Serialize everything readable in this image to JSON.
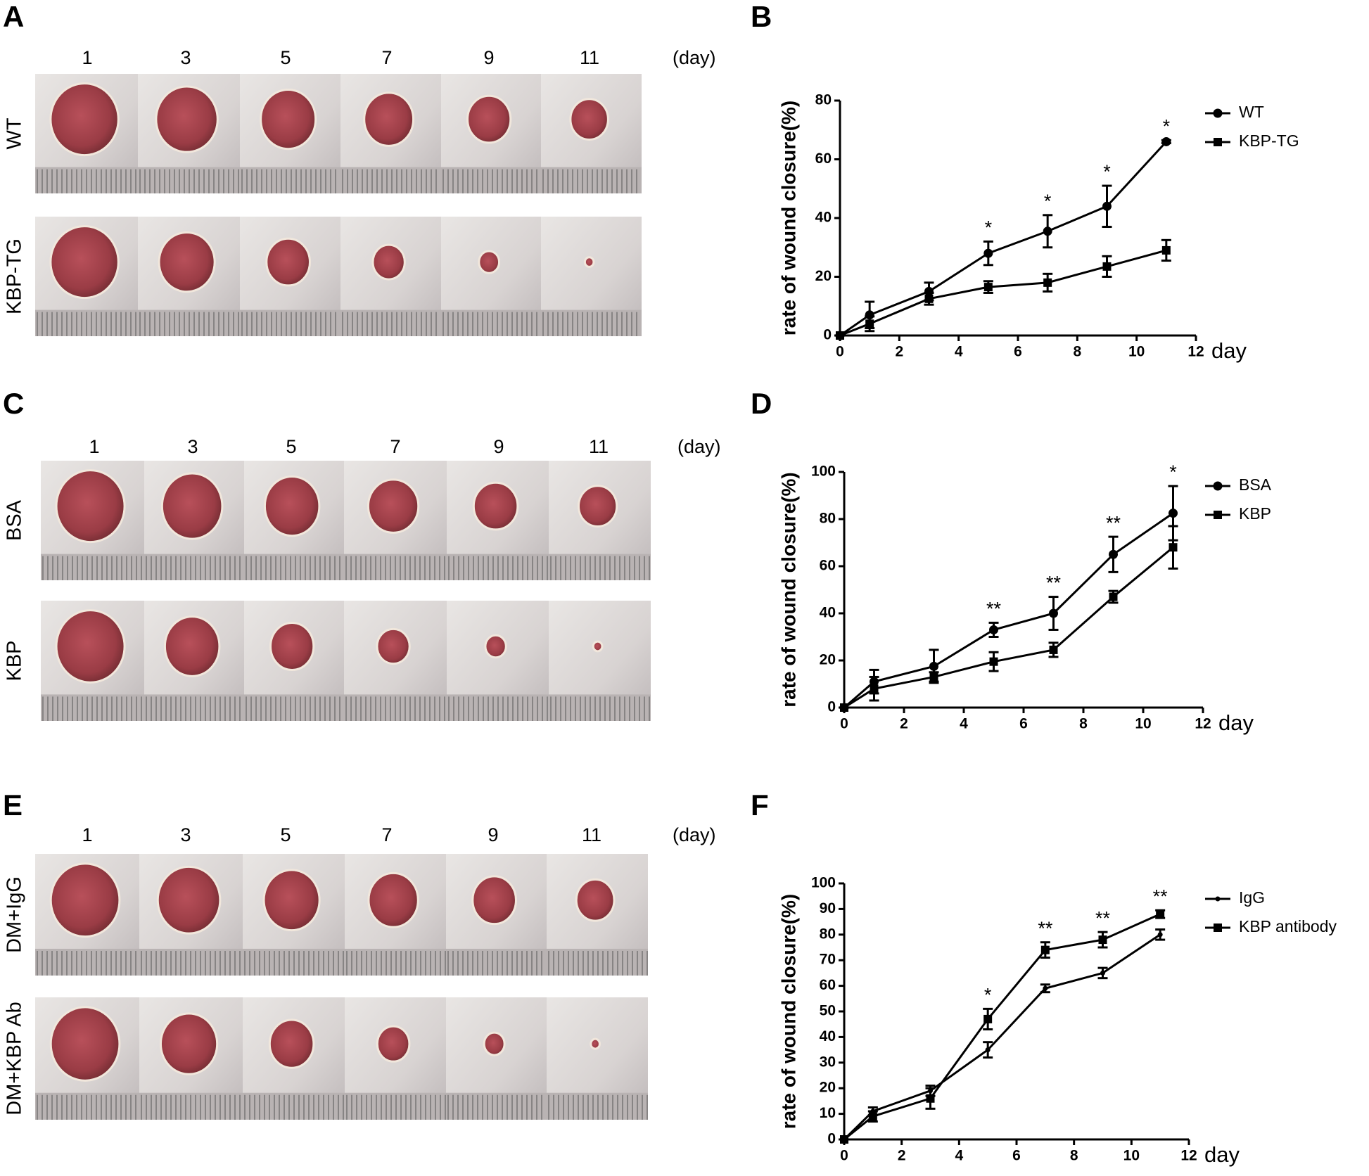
{
  "photo_panels": [
    {
      "letter": "A",
      "days": [
        "1",
        "3",
        "5",
        "7",
        "9",
        "11"
      ],
      "unit": "(day)",
      "rows": [
        "WT",
        "KBP-TG"
      ]
    },
    {
      "letter": "C",
      "days": [
        "1",
        "3",
        "5",
        "7",
        "9",
        "11"
      ],
      "unit": "(day)",
      "rows": [
        "BSA",
        "KBP"
      ]
    },
    {
      "letter": "E",
      "days": [
        "1",
        "3",
        "5",
        "7",
        "9",
        "11"
      ],
      "unit": "(day)",
      "rows": [
        "DM+IgG",
        "DM+KBP Ab"
      ]
    }
  ],
  "chart_data": [
    {
      "type": "line",
      "letter": "B",
      "y_label": "rate of wound closure(%)",
      "x_label": "day",
      "x": [
        0,
        1,
        3,
        5,
        7,
        9,
        11
      ],
      "xlim": [
        0,
        12
      ],
      "xticks": [
        0,
        2,
        4,
        6,
        8,
        10,
        12
      ],
      "ylim": [
        0,
        80
      ],
      "yticks": [
        0,
        20,
        40,
        60,
        80
      ],
      "series": [
        {
          "name": "WT",
          "color": "#000000",
          "marker": "circle",
          "values": [
            0,
            7,
            15,
            28,
            35.5,
            44,
            66
          ],
          "errors": [
            0,
            4.5,
            3,
            4,
            5.5,
            7,
            0.5
          ]
        },
        {
          "name": "KBP-TG",
          "color": "#000000",
          "marker": "square",
          "values": [
            0,
            4,
            12.5,
            16.5,
            18,
            23.5,
            29
          ],
          "errors": [
            0,
            2.5,
            2,
            2,
            3,
            3.5,
            3.5
          ]
        }
      ],
      "annotations": [
        {
          "x": 5,
          "text": "*"
        },
        {
          "x": 7,
          "text": "*"
        },
        {
          "x": 9,
          "text": "*"
        },
        {
          "x": 11,
          "text": "*"
        }
      ]
    },
    {
      "type": "line",
      "letter": "D",
      "y_label": "rate of wound closure(%)",
      "x_label": "day",
      "x": [
        0,
        1,
        3,
        5,
        7,
        9,
        11
      ],
      "xlim": [
        0,
        12
      ],
      "xticks": [
        0,
        2,
        4,
        6,
        8,
        10,
        12
      ],
      "ylim": [
        0,
        100
      ],
      "yticks": [
        0,
        20,
        40,
        60,
        80,
        100
      ],
      "series": [
        {
          "name": "BSA",
          "color": "#000000",
          "marker": "circle",
          "values": [
            0,
            11,
            17.5,
            33,
            40,
            65,
            82.5
          ],
          "errors": [
            0,
            5,
            7,
            3,
            7,
            7.5,
            11.5
          ]
        },
        {
          "name": "KBP",
          "color": "#000000",
          "marker": "square",
          "values": [
            0,
            8,
            13,
            19.5,
            24.5,
            47,
            68
          ],
          "errors": [
            0,
            5,
            2,
            4,
            3,
            2.5,
            9
          ]
        }
      ],
      "annotations": [
        {
          "x": 5,
          "text": "**"
        },
        {
          "x": 7,
          "text": "**"
        },
        {
          "x": 9,
          "text": "**"
        },
        {
          "x": 11,
          "text": "*"
        }
      ]
    },
    {
      "type": "line",
      "letter": "F",
      "y_label": "rate of wound closure(%)",
      "x_label": "day",
      "x": [
        0,
        1,
        3,
        5,
        7,
        9,
        11
      ],
      "xlim": [
        0,
        12
      ],
      "xticks": [
        0,
        2,
        4,
        6,
        8,
        10,
        12
      ],
      "ylim": [
        0,
        100
      ],
      "yticks": [
        0,
        10,
        20,
        30,
        40,
        50,
        60,
        70,
        80,
        90,
        100
      ],
      "series": [
        {
          "name": "IgG",
          "color": "#000000",
          "marker": "dot",
          "values": [
            0,
            11,
            19,
            35,
            59,
            65,
            80
          ],
          "errors": [
            0,
            1.5,
            2,
            3,
            1.5,
            2,
            2
          ]
        },
        {
          "name": "KBP antibody",
          "color": "#000000",
          "marker": "square",
          "values": [
            0,
            9,
            16,
            47,
            74,
            78,
            88
          ],
          "errors": [
            0,
            2,
            4,
            4,
            3,
            3,
            1.5
          ]
        }
      ],
      "annotations": [
        {
          "x": 5,
          "text": "*"
        },
        {
          "x": 7,
          "text": "**"
        },
        {
          "x": 9,
          "text": "**"
        },
        {
          "x": 11,
          "text": "**"
        }
      ]
    }
  ]
}
